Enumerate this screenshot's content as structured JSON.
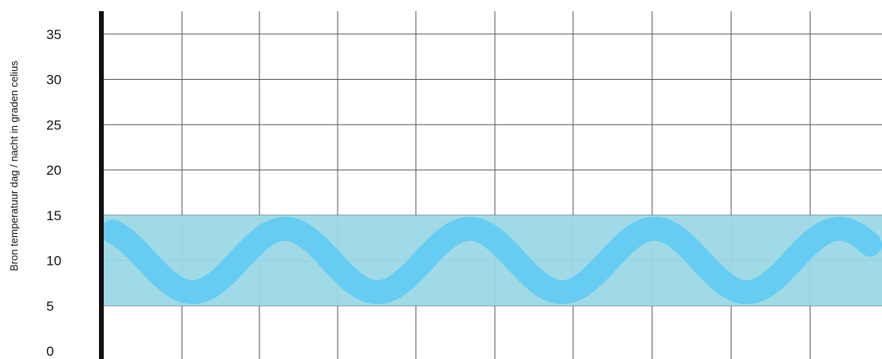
{
  "chart_data": {
    "type": "area",
    "title": "",
    "xlabel": "",
    "ylabel": "Bron temperatuur dag / nacht in graden celius",
    "ylim": [
      0,
      38
    ],
    "yticks": [
      0,
      5,
      10,
      15,
      20,
      25,
      30,
      35
    ],
    "ytick_labels": [
      "0",
      "5",
      "10",
      "15",
      "20",
      "25",
      "30",
      "35"
    ],
    "grid": true,
    "band": {
      "lower": 5,
      "upper": 15,
      "color": "#9bd8e5"
    },
    "wave": {
      "color": "#66ccf2",
      "center": 10,
      "amplitude": 3.5,
      "periods": 4.1,
      "points": [
        {
          "x": 0,
          "y": 13.2
        },
        {
          "x": 0.125,
          "y": 8.5
        },
        {
          "x": 0.25,
          "y": 13.5
        },
        {
          "x": 0.375,
          "y": 8.5
        },
        {
          "x": 0.5,
          "y": 13.5
        },
        {
          "x": 0.625,
          "y": 8.5
        },
        {
          "x": 0.75,
          "y": 13.5
        },
        {
          "x": 0.875,
          "y": 8.5
        },
        {
          "x": 1.0,
          "y": 12.9
        }
      ]
    },
    "colors": {
      "axis": "#111111",
      "grid": "#555555"
    }
  }
}
